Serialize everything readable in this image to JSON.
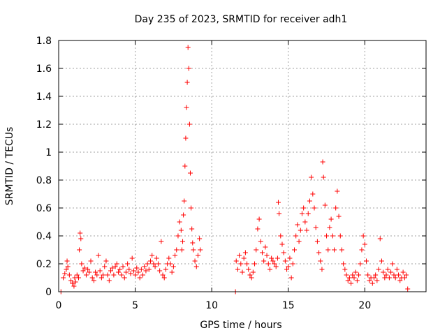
{
  "chart_data": {
    "type": "scatter",
    "title": "Day 235 of 2023, SRMTID for receiver adh1",
    "xlabel": "GPS time / hours",
    "ylabel": "SRMTID / TECUs",
    "xlim": [
      0,
      24
    ],
    "ylim": [
      0,
      1.8
    ],
    "xticks": [
      "0",
      "5",
      "10",
      "15",
      "20"
    ],
    "yticks": [
      "0",
      "0.2",
      "0.4",
      "0.6",
      "0.8",
      "1",
      "1.2",
      "1.4",
      "1.6",
      "1.8"
    ],
    "grid": true,
    "marker": "plus",
    "series_color": "#ff0000",
    "series": [
      {
        "name": "adh1",
        "points": [
          [
            0.15,
            0.0
          ],
          [
            0.3,
            0.1
          ],
          [
            0.4,
            0.13
          ],
          [
            0.5,
            0.16
          ],
          [
            0.55,
            0.22
          ],
          [
            0.6,
            0.18
          ],
          [
            0.7,
            0.12
          ],
          [
            0.8,
            0.08
          ],
          [
            0.9,
            0.06
          ],
          [
            1.0,
            0.04
          ],
          [
            1.05,
            0.1
          ],
          [
            1.1,
            0.07
          ],
          [
            1.2,
            0.12
          ],
          [
            1.3,
            0.1
          ],
          [
            1.35,
            0.3
          ],
          [
            1.4,
            0.42
          ],
          [
            1.45,
            0.38
          ],
          [
            1.5,
            0.2
          ],
          [
            1.6,
            0.15
          ],
          [
            1.7,
            0.17
          ],
          [
            1.8,
            0.12
          ],
          [
            1.9,
            0.16
          ],
          [
            2.0,
            0.14
          ],
          [
            2.1,
            0.22
          ],
          [
            2.2,
            0.1
          ],
          [
            2.3,
            0.08
          ],
          [
            2.4,
            0.14
          ],
          [
            2.5,
            0.12
          ],
          [
            2.6,
            0.26
          ],
          [
            2.7,
            0.15
          ],
          [
            2.8,
            0.1
          ],
          [
            2.9,
            0.12
          ],
          [
            3.0,
            0.18
          ],
          [
            3.1,
            0.22
          ],
          [
            3.2,
            0.12
          ],
          [
            3.3,
            0.08
          ],
          [
            3.4,
            0.15
          ],
          [
            3.5,
            0.17
          ],
          [
            3.6,
            0.12
          ],
          [
            3.7,
            0.18
          ],
          [
            3.8,
            0.2
          ],
          [
            3.9,
            0.14
          ],
          [
            4.0,
            0.16
          ],
          [
            4.1,
            0.12
          ],
          [
            4.2,
            0.18
          ],
          [
            4.3,
            0.1
          ],
          [
            4.4,
            0.14
          ],
          [
            4.5,
            0.2
          ],
          [
            4.6,
            0.16
          ],
          [
            4.7,
            0.13
          ],
          [
            4.8,
            0.24
          ],
          [
            4.9,
            0.15
          ],
          [
            5.0,
            0.12
          ],
          [
            5.1,
            0.17
          ],
          [
            5.2,
            0.14
          ],
          [
            5.3,
            0.1
          ],
          [
            5.4,
            0.16
          ],
          [
            5.5,
            0.12
          ],
          [
            5.6,
            0.18
          ],
          [
            5.7,
            0.15
          ],
          [
            5.8,
            0.2
          ],
          [
            5.9,
            0.16
          ],
          [
            6.0,
            0.22
          ],
          [
            6.1,
            0.26
          ],
          [
            6.2,
            0.2
          ],
          [
            6.3,
            0.18
          ],
          [
            6.4,
            0.24
          ],
          [
            6.5,
            0.2
          ],
          [
            6.6,
            0.15
          ],
          [
            6.7,
            0.36
          ],
          [
            6.8,
            0.12
          ],
          [
            6.9,
            0.1
          ],
          [
            7.0,
            0.16
          ],
          [
            7.1,
            0.2
          ],
          [
            7.2,
            0.24
          ],
          [
            7.3,
            0.2
          ],
          [
            7.4,
            0.14
          ],
          [
            7.5,
            0.18
          ],
          [
            7.6,
            0.26
          ],
          [
            7.7,
            0.3
          ],
          [
            7.8,
            0.4
          ],
          [
            7.9,
            0.5
          ],
          [
            8.0,
            0.44
          ],
          [
            8.05,
            0.3
          ],
          [
            8.1,
            0.36
          ],
          [
            8.15,
            0.55
          ],
          [
            8.2,
            0.65
          ],
          [
            8.25,
            0.9
          ],
          [
            8.3,
            1.1
          ],
          [
            8.35,
            1.32
          ],
          [
            8.4,
            1.5
          ],
          [
            8.45,
            1.75
          ],
          [
            8.5,
            1.6
          ],
          [
            8.55,
            1.2
          ],
          [
            8.6,
            0.85
          ],
          [
            8.65,
            0.6
          ],
          [
            8.7,
            0.45
          ],
          [
            8.75,
            0.35
          ],
          [
            8.8,
            0.3
          ],
          [
            8.9,
            0.22
          ],
          [
            9.0,
            0.18
          ],
          [
            9.1,
            0.26
          ],
          [
            9.2,
            0.38
          ],
          [
            9.25,
            0.3
          ],
          [
            11.55,
            0.0
          ],
          [
            11.6,
            0.22
          ],
          [
            11.7,
            0.16
          ],
          [
            11.8,
            0.26
          ],
          [
            11.9,
            0.2
          ],
          [
            12.0,
            0.14
          ],
          [
            12.1,
            0.24
          ],
          [
            12.2,
            0.28
          ],
          [
            12.3,
            0.2
          ],
          [
            12.4,
            0.16
          ],
          [
            12.5,
            0.12
          ],
          [
            12.6,
            0.1
          ],
          [
            12.7,
            0.14
          ],
          [
            12.8,
            0.2
          ],
          [
            12.9,
            0.3
          ],
          [
            13.0,
            0.45
          ],
          [
            13.1,
            0.52
          ],
          [
            13.2,
            0.36
          ],
          [
            13.3,
            0.28
          ],
          [
            13.4,
            0.22
          ],
          [
            13.5,
            0.32
          ],
          [
            13.6,
            0.26
          ],
          [
            13.7,
            0.2
          ],
          [
            13.8,
            0.16
          ],
          [
            13.9,
            0.24
          ],
          [
            14.0,
            0.22
          ],
          [
            14.1,
            0.2
          ],
          [
            14.2,
            0.18
          ],
          [
            14.3,
            0.24
          ],
          [
            14.35,
            0.64
          ],
          [
            14.4,
            0.56
          ],
          [
            14.5,
            0.4
          ],
          [
            14.6,
            0.34
          ],
          [
            14.7,
            0.28
          ],
          [
            14.8,
            0.22
          ],
          [
            14.9,
            0.16
          ],
          [
            15.0,
            0.18
          ],
          [
            15.1,
            0.24
          ],
          [
            15.2,
            0.1
          ],
          [
            15.3,
            0.2
          ],
          [
            15.4,
            0.3
          ],
          [
            15.5,
            0.4
          ],
          [
            15.6,
            0.48
          ],
          [
            15.7,
            0.36
          ],
          [
            15.8,
            0.44
          ],
          [
            15.9,
            0.56
          ],
          [
            16.0,
            0.6
          ],
          [
            16.1,
            0.5
          ],
          [
            16.2,
            0.44
          ],
          [
            16.3,
            0.56
          ],
          [
            16.4,
            0.65
          ],
          [
            16.5,
            0.82
          ],
          [
            16.6,
            0.7
          ],
          [
            16.7,
            0.6
          ],
          [
            16.8,
            0.46
          ],
          [
            16.9,
            0.36
          ],
          [
            17.0,
            0.28
          ],
          [
            17.1,
            0.22
          ],
          [
            17.2,
            0.16
          ],
          [
            17.25,
            0.93
          ],
          [
            17.3,
            0.82
          ],
          [
            17.4,
            0.62
          ],
          [
            17.5,
            0.4
          ],
          [
            17.6,
            0.3
          ],
          [
            17.7,
            0.46
          ],
          [
            17.8,
            0.52
          ],
          [
            17.9,
            0.4
          ],
          [
            18.0,
            0.3
          ],
          [
            18.1,
            0.6
          ],
          [
            18.2,
            0.72
          ],
          [
            18.3,
            0.54
          ],
          [
            18.4,
            0.4
          ],
          [
            18.5,
            0.3
          ],
          [
            18.6,
            0.2
          ],
          [
            18.7,
            0.16
          ],
          [
            18.8,
            0.12
          ],
          [
            18.9,
            0.08
          ],
          [
            19.0,
            0.1
          ],
          [
            19.1,
            0.06
          ],
          [
            19.2,
            0.12
          ],
          [
            19.3,
            0.1
          ],
          [
            19.4,
            0.14
          ],
          [
            19.5,
            0.08
          ],
          [
            19.6,
            0.12
          ],
          [
            19.7,
            0.2
          ],
          [
            19.8,
            0.3
          ],
          [
            19.9,
            0.4
          ],
          [
            20.0,
            0.34
          ],
          [
            20.1,
            0.22
          ],
          [
            20.2,
            0.12
          ],
          [
            20.3,
            0.08
          ],
          [
            20.4,
            0.1
          ],
          [
            20.5,
            0.06
          ],
          [
            20.6,
            0.1
          ],
          [
            20.7,
            0.12
          ],
          [
            20.8,
            0.08
          ],
          [
            20.9,
            0.16
          ],
          [
            21.0,
            0.38
          ],
          [
            21.1,
            0.22
          ],
          [
            21.2,
            0.14
          ],
          [
            21.3,
            0.1
          ],
          [
            21.4,
            0.12
          ],
          [
            21.5,
            0.16
          ],
          [
            21.6,
            0.1
          ],
          [
            21.7,
            0.14
          ],
          [
            21.8,
            0.2
          ],
          [
            21.9,
            0.12
          ],
          [
            22.0,
            0.1
          ],
          [
            22.1,
            0.16
          ],
          [
            22.2,
            0.12
          ],
          [
            22.3,
            0.08
          ],
          [
            22.4,
            0.1
          ],
          [
            22.5,
            0.14
          ],
          [
            22.6,
            0.1
          ],
          [
            22.7,
            0.12
          ],
          [
            22.8,
            0.02
          ]
        ]
      }
    ]
  }
}
